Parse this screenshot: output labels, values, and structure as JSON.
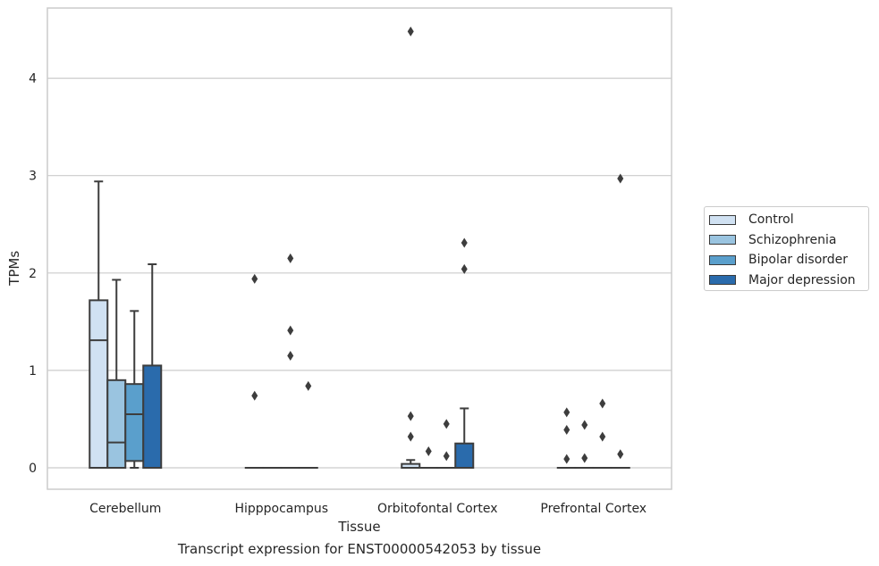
{
  "caption": "Transcript expression for ENST00000542053 by tissue",
  "chart_data": {
    "type": "box",
    "xlabel": "Tissue",
    "ylabel": "TPMs",
    "ylim": [
      -0.22,
      4.7
    ],
    "yticks": [
      0,
      1,
      2,
      3,
      4
    ],
    "grid": "horizontal",
    "legend_position": "right",
    "categories": [
      "Cerebellum",
      "Hipppocampus",
      "Orbitofontal Cortex",
      "Prefrontal Cortex"
    ],
    "series": [
      {
        "name": "Control",
        "color": "#d0e1f2",
        "boxes": [
          {
            "q1": 0,
            "median": 1.31,
            "q3": 1.72,
            "whislo": 0,
            "whishi": 2.94,
            "fliers": []
          },
          {
            "q1": 0,
            "median": 0,
            "q3": 0,
            "whislo": 0,
            "whishi": 0,
            "fliers": [
              0.74,
              1.94
            ]
          },
          {
            "q1": 0,
            "median": 0,
            "q3": 0.04,
            "whislo": 0,
            "whishi": 0.08,
            "fliers": [
              0.32,
              0.53,
              4.48
            ]
          },
          {
            "q1": 0,
            "median": 0,
            "q3": 0,
            "whislo": 0,
            "whishi": 0,
            "fliers": [
              0.09,
              0.39,
              0.57
            ]
          }
        ]
      },
      {
        "name": "Schizophrenia",
        "color": "#9ac4e0",
        "boxes": [
          {
            "q1": 0,
            "median": 0.26,
            "q3": 0.9,
            "whislo": 0,
            "whishi": 1.93,
            "fliers": []
          },
          {
            "q1": 0,
            "median": 0,
            "q3": 0,
            "whislo": 0,
            "whishi": 0,
            "fliers": []
          },
          {
            "q1": 0,
            "median": 0,
            "q3": 0,
            "whislo": 0,
            "whishi": 0,
            "fliers": [
              0.17
            ]
          },
          {
            "q1": 0,
            "median": 0,
            "q3": 0,
            "whislo": 0,
            "whishi": 0,
            "fliers": [
              0.1,
              0.44
            ]
          }
        ]
      },
      {
        "name": "Bipolar disorder",
        "color": "#5a9fcc",
        "boxes": [
          {
            "q1": 0.07,
            "median": 0.55,
            "q3": 0.86,
            "whislo": 0,
            "whishi": 1.61,
            "fliers": []
          },
          {
            "q1": 0,
            "median": 0,
            "q3": 0,
            "whislo": 0,
            "whishi": 0,
            "fliers": [
              1.15,
              1.41,
              2.15
            ]
          },
          {
            "q1": 0,
            "median": 0,
            "q3": 0,
            "whislo": 0,
            "whishi": 0,
            "fliers": [
              0.12,
              0.45
            ]
          },
          {
            "q1": 0,
            "median": 0,
            "q3": 0,
            "whislo": 0,
            "whishi": 0,
            "fliers": [
              0.32,
              0.66
            ]
          }
        ]
      },
      {
        "name": "Major depression",
        "color": "#2a6bac",
        "boxes": [
          {
            "q1": 0,
            "median": 0,
            "q3": 1.05,
            "whislo": 0,
            "whishi": 2.09,
            "fliers": []
          },
          {
            "q1": 0,
            "median": 0,
            "q3": 0,
            "whislo": 0,
            "whishi": 0,
            "fliers": [
              0.84
            ]
          },
          {
            "q1": 0,
            "median": 0,
            "q3": 0.25,
            "whislo": 0,
            "whishi": 0.61,
            "fliers": [
              2.04,
              2.31
            ]
          },
          {
            "q1": 0,
            "median": 0,
            "q3": 0,
            "whislo": 0,
            "whishi": 0,
            "fliers": [
              0.14,
              2.97
            ]
          }
        ]
      }
    ]
  }
}
